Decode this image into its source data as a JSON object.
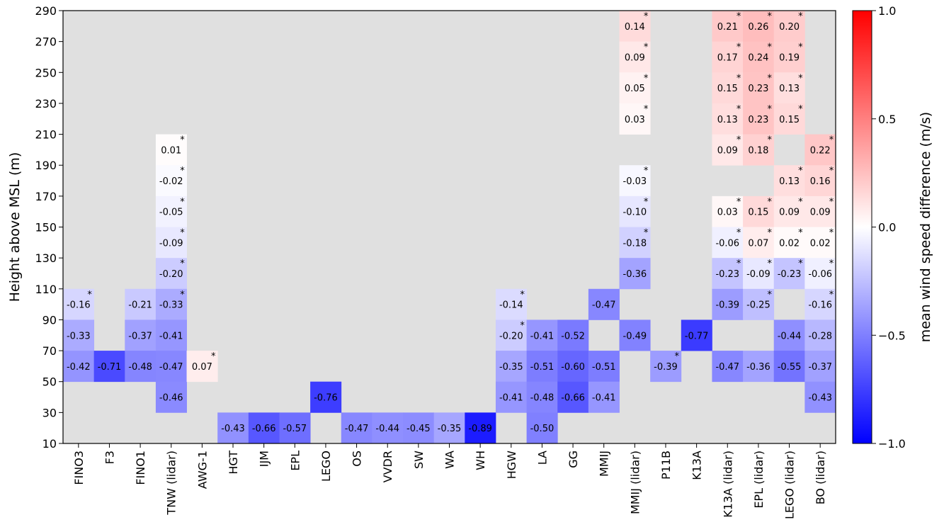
{
  "chart_data": {
    "type": "heatmap",
    "ylabel": "Height above MSL (m)",
    "colorbar_label": "mean wind speed difference (m/s)",
    "colorbar_ticks": [
      "1.0",
      "0.5",
      "0.0",
      "−0.5",
      "−1.0"
    ],
    "clim": [
      -1.0,
      1.0
    ],
    "background_color": "#e0e0e0",
    "colormap": "bwr",
    "height_ticks": [
      "10",
      "30",
      "50",
      "70",
      "90",
      "110",
      "130",
      "150",
      "170",
      "190",
      "210",
      "230",
      "250",
      "270",
      "290"
    ],
    "height_range": [
      10,
      290
    ],
    "bin_size_m": 20,
    "stations": [
      "FINO3",
      "F3",
      "FINO1",
      "TNW (lidar)",
      "AWG-1",
      "HGT",
      "IJM",
      "EPL",
      "LEGO",
      "OS",
      "VVDR",
      "SW",
      "WA",
      "WH",
      "HGW",
      "LA",
      "GG",
      "MMIJ",
      "MMIJ (lidar)",
      "P11B",
      "K13A",
      "K13A (lidar)",
      "EPL (lidar)",
      "LEGO (lidar)",
      "BO (lidar)"
    ],
    "cells": [
      {
        "station": "FINO3",
        "height": 100,
        "value": -0.16,
        "label": "-0.16",
        "sig": true
      },
      {
        "station": "FINO3",
        "height": 80,
        "value": -0.33,
        "label": "-0.33",
        "sig": false
      },
      {
        "station": "FINO3",
        "height": 60,
        "value": -0.42,
        "label": "-0.42",
        "sig": false
      },
      {
        "station": "F3",
        "height": 60,
        "value": -0.71,
        "label": "-0.71",
        "sig": false
      },
      {
        "station": "FINO1",
        "height": 100,
        "value": -0.21,
        "label": "-0.21",
        "sig": false
      },
      {
        "station": "FINO1",
        "height": 80,
        "value": -0.37,
        "label": "-0.37",
        "sig": false
      },
      {
        "station": "FINO1",
        "height": 60,
        "value": -0.48,
        "label": "-0.48",
        "sig": false
      },
      {
        "station": "TNW (lidar)",
        "height": 200,
        "value": 0.01,
        "label": "0.01",
        "sig": true
      },
      {
        "station": "TNW (lidar)",
        "height": 180,
        "value": -0.02,
        "label": "-0.02",
        "sig": true
      },
      {
        "station": "TNW (lidar)",
        "height": 160,
        "value": -0.05,
        "label": "-0.05",
        "sig": true
      },
      {
        "station": "TNW (lidar)",
        "height": 140,
        "value": -0.09,
        "label": "-0.09",
        "sig": true
      },
      {
        "station": "TNW (lidar)",
        "height": 120,
        "value": -0.2,
        "label": "-0.20",
        "sig": true
      },
      {
        "station": "TNW (lidar)",
        "height": 100,
        "value": -0.33,
        "label": "-0.33",
        "sig": true
      },
      {
        "station": "TNW (lidar)",
        "height": 80,
        "value": -0.41,
        "label": "-0.41",
        "sig": false
      },
      {
        "station": "TNW (lidar)",
        "height": 60,
        "value": -0.47,
        "label": "-0.47",
        "sig": false
      },
      {
        "station": "TNW (lidar)",
        "height": 40,
        "value": -0.46,
        "label": "-0.46",
        "sig": false
      },
      {
        "station": "AWG-1",
        "height": 60,
        "value": 0.07,
        "label": "0.07",
        "sig": true
      },
      {
        "station": "HGT",
        "height": 20,
        "value": -0.43,
        "label": "-0.43",
        "sig": false
      },
      {
        "station": "IJM",
        "height": 20,
        "value": -0.66,
        "label": "-0.66",
        "sig": false
      },
      {
        "station": "EPL",
        "height": 20,
        "value": -0.57,
        "label": "-0.57",
        "sig": false
      },
      {
        "station": "LEGO",
        "height": 40,
        "value": -0.76,
        "label": "-0.76",
        "sig": false
      },
      {
        "station": "OS",
        "height": 20,
        "value": -0.47,
        "label": "-0.47",
        "sig": false
      },
      {
        "station": "VVDR",
        "height": 20,
        "value": -0.44,
        "label": "-0.44",
        "sig": false
      },
      {
        "station": "SW",
        "height": 20,
        "value": -0.45,
        "label": "-0.45",
        "sig": false
      },
      {
        "station": "WA",
        "height": 20,
        "value": -0.35,
        "label": "-0.35",
        "sig": false
      },
      {
        "station": "WH",
        "height": 20,
        "value": -0.89,
        "label": "-0.89",
        "sig": false
      },
      {
        "station": "HGW",
        "height": 100,
        "value": -0.14,
        "label": "-0.14",
        "sig": true
      },
      {
        "station": "HGW",
        "height": 80,
        "value": -0.2,
        "label": "-0.20",
        "sig": true
      },
      {
        "station": "HGW",
        "height": 60,
        "value": -0.35,
        "label": "-0.35",
        "sig": false
      },
      {
        "station": "HGW",
        "height": 40,
        "value": -0.41,
        "label": "-0.41",
        "sig": false
      },
      {
        "station": "LA",
        "height": 80,
        "value": -0.41,
        "label": "-0.41",
        "sig": false
      },
      {
        "station": "LA",
        "height": 60,
        "value": -0.51,
        "label": "-0.51",
        "sig": false
      },
      {
        "station": "LA",
        "height": 40,
        "value": -0.48,
        "label": "-0.48",
        "sig": false
      },
      {
        "station": "LA",
        "height": 20,
        "value": -0.5,
        "label": "-0.50",
        "sig": false
      },
      {
        "station": "GG",
        "height": 80,
        "value": -0.52,
        "label": "-0.52",
        "sig": false
      },
      {
        "station": "GG",
        "height": 60,
        "value": -0.6,
        "label": "-0.60",
        "sig": false
      },
      {
        "station": "GG",
        "height": 40,
        "value": -0.66,
        "label": "-0.66",
        "sig": false
      },
      {
        "station": "MMIJ",
        "height": 100,
        "value": -0.47,
        "label": "-0.47",
        "sig": false
      },
      {
        "station": "MMIJ",
        "height": 60,
        "value": -0.51,
        "label": "-0.51",
        "sig": false
      },
      {
        "station": "MMIJ",
        "height": 40,
        "value": -0.41,
        "label": "-0.41",
        "sig": false
      },
      {
        "station": "MMIJ (lidar)",
        "height": 280,
        "value": 0.14,
        "label": "0.14",
        "sig": true
      },
      {
        "station": "MMIJ (lidar)",
        "height": 260,
        "value": 0.09,
        "label": "0.09",
        "sig": true
      },
      {
        "station": "MMIJ (lidar)",
        "height": 240,
        "value": 0.05,
        "label": "0.05",
        "sig": true
      },
      {
        "station": "MMIJ (lidar)",
        "height": 220,
        "value": 0.03,
        "label": "0.03",
        "sig": true
      },
      {
        "station": "MMIJ (lidar)",
        "height": 180,
        "value": -0.03,
        "label": "-0.03",
        "sig": true
      },
      {
        "station": "MMIJ (lidar)",
        "height": 160,
        "value": -0.1,
        "label": "-0.10",
        "sig": true
      },
      {
        "station": "MMIJ (lidar)",
        "height": 140,
        "value": -0.18,
        "label": "-0.18",
        "sig": true
      },
      {
        "station": "MMIJ (lidar)",
        "height": 120,
        "value": -0.36,
        "label": "-0.36",
        "sig": false
      },
      {
        "station": "MMIJ (lidar)",
        "height": 80,
        "value": -0.49,
        "label": "-0.49",
        "sig": false
      },
      {
        "station": "P11B",
        "height": 60,
        "value": -0.39,
        "label": "-0.39",
        "sig": true
      },
      {
        "station": "K13A",
        "height": 80,
        "value": -0.77,
        "label": "-0.77",
        "sig": false
      },
      {
        "station": "K13A (lidar)",
        "height": 280,
        "value": 0.21,
        "label": "0.21",
        "sig": true
      },
      {
        "station": "K13A (lidar)",
        "height": 260,
        "value": 0.17,
        "label": "0.17",
        "sig": true
      },
      {
        "station": "K13A (lidar)",
        "height": 240,
        "value": 0.15,
        "label": "0.15",
        "sig": true
      },
      {
        "station": "K13A (lidar)",
        "height": 220,
        "value": 0.13,
        "label": "0.13",
        "sig": true
      },
      {
        "station": "K13A (lidar)",
        "height": 200,
        "value": 0.09,
        "label": "0.09",
        "sig": true
      },
      {
        "station": "K13A (lidar)",
        "height": 160,
        "value": 0.03,
        "label": "0.03",
        "sig": true
      },
      {
        "station": "K13A (lidar)",
        "height": 140,
        "value": -0.06,
        "label": "-0.06",
        "sig": true
      },
      {
        "station": "K13A (lidar)",
        "height": 120,
        "value": -0.23,
        "label": "-0.23",
        "sig": true
      },
      {
        "station": "K13A (lidar)",
        "height": 100,
        "value": -0.39,
        "label": "-0.39",
        "sig": false
      },
      {
        "station": "K13A (lidar)",
        "height": 60,
        "value": -0.47,
        "label": "-0.47",
        "sig": false
      },
      {
        "station": "EPL (lidar)",
        "height": 280,
        "value": 0.26,
        "label": "0.26",
        "sig": true
      },
      {
        "station": "EPL (lidar)",
        "height": 260,
        "value": 0.24,
        "label": "0.24",
        "sig": true
      },
      {
        "station": "EPL (lidar)",
        "height": 240,
        "value": 0.23,
        "label": "0.23",
        "sig": true
      },
      {
        "station": "EPL (lidar)",
        "height": 220,
        "value": 0.23,
        "label": "0.23",
        "sig": true
      },
      {
        "station": "EPL (lidar)",
        "height": 200,
        "value": 0.18,
        "label": "0.18",
        "sig": true
      },
      {
        "station": "EPL (lidar)",
        "height": 160,
        "value": 0.15,
        "label": "0.15",
        "sig": true
      },
      {
        "station": "EPL (lidar)",
        "height": 140,
        "value": 0.07,
        "label": "0.07",
        "sig": true
      },
      {
        "station": "EPL (lidar)",
        "height": 120,
        "value": -0.09,
        "label": "-0.09",
        "sig": true
      },
      {
        "station": "EPL (lidar)",
        "height": 100,
        "value": -0.25,
        "label": "-0.25",
        "sig": true
      },
      {
        "station": "EPL (lidar)",
        "height": 60,
        "value": -0.36,
        "label": "-0.36",
        "sig": false
      },
      {
        "station": "LEGO (lidar)",
        "height": 280,
        "value": 0.2,
        "label": "0.20",
        "sig": true
      },
      {
        "station": "LEGO (lidar)",
        "height": 260,
        "value": 0.19,
        "label": "0.19",
        "sig": true
      },
      {
        "station": "LEGO (lidar)",
        "height": 240,
        "value": 0.13,
        "label": "0.13",
        "sig": true
      },
      {
        "station": "LEGO (lidar)",
        "height": 220,
        "value": 0.15,
        "label": "0.15",
        "sig": true
      },
      {
        "station": "LEGO (lidar)",
        "height": 180,
        "value": 0.13,
        "label": "0.13",
        "sig": true
      },
      {
        "station": "LEGO (lidar)",
        "height": 160,
        "value": 0.09,
        "label": "0.09",
        "sig": true
      },
      {
        "station": "LEGO (lidar)",
        "height": 140,
        "value": 0.02,
        "label": "0.02",
        "sig": true
      },
      {
        "station": "LEGO (lidar)",
        "height": 120,
        "value": -0.23,
        "label": "-0.23",
        "sig": true
      },
      {
        "station": "LEGO (lidar)",
        "height": 80,
        "value": -0.44,
        "label": "-0.44",
        "sig": false
      },
      {
        "station": "LEGO (lidar)",
        "height": 60,
        "value": -0.55,
        "label": "-0.55",
        "sig": false
      },
      {
        "station": "BO (lidar)",
        "height": 200,
        "value": 0.22,
        "label": "0.22",
        "sig": true
      },
      {
        "station": "BO (lidar)",
        "height": 180,
        "value": 0.16,
        "label": "0.16",
        "sig": true
      },
      {
        "station": "BO (lidar)",
        "height": 160,
        "value": 0.09,
        "label": "0.09",
        "sig": true
      },
      {
        "station": "BO (lidar)",
        "height": 140,
        "value": 0.02,
        "label": "0.02",
        "sig": true
      },
      {
        "station": "BO (lidar)",
        "height": 120,
        "value": -0.06,
        "label": "-0.06",
        "sig": true
      },
      {
        "station": "BO (lidar)",
        "height": 100,
        "value": -0.16,
        "label": "-0.16",
        "sig": true
      },
      {
        "station": "BO (lidar)",
        "height": 80,
        "value": -0.28,
        "label": "-0.28",
        "sig": false
      },
      {
        "station": "BO (lidar)",
        "height": 60,
        "value": -0.37,
        "label": "-0.37",
        "sig": false
      },
      {
        "station": "BO (lidar)",
        "height": 40,
        "value": -0.43,
        "label": "-0.43",
        "sig": false
      }
    ]
  }
}
